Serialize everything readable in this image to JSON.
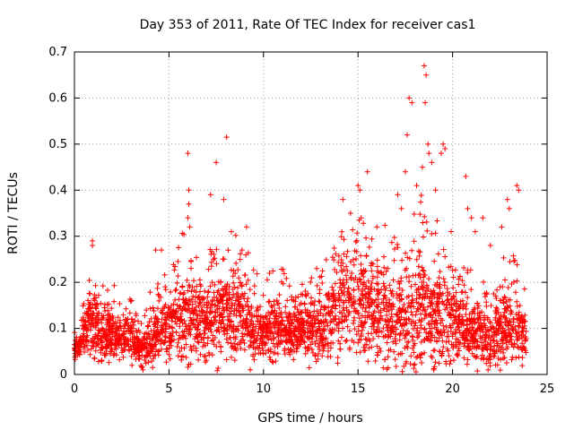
{
  "chart_data": {
    "type": "scatter",
    "title": "Day 353 of 2011, Rate Of TEC Index for receiver cas1",
    "xlabel": "GPS time / hours",
    "ylabel": "ROTI / TECUs",
    "xlim": [
      0,
      25
    ],
    "ylim": [
      0,
      0.7
    ],
    "xticks": [
      0,
      5,
      10,
      15,
      20,
      25
    ],
    "yticks": [
      0,
      0.1,
      0.2,
      0.3,
      0.4,
      0.5,
      0.6,
      0.7
    ],
    "grid": true,
    "marker": "+",
    "marker_color": "#ff0000",
    "envelope": {
      "x": [
        0,
        0.3,
        0.8,
        1.0,
        1.5,
        2.0,
        2.5,
        3.0,
        3.5,
        4.0,
        4.5,
        5.0,
        5.5,
        6.0,
        6.5,
        7.0,
        7.5,
        8.0,
        8.5,
        9.0,
        9.5,
        10.0,
        10.5,
        11.0,
        11.5,
        12.0,
        12.5,
        13.0,
        13.5,
        14.0,
        14.5,
        15.0,
        15.5,
        16.0,
        16.5,
        17.0,
        17.5,
        18.0,
        18.5,
        19.0,
        19.5,
        20.0,
        20.5,
        21.0,
        21.5,
        22.0,
        22.5,
        23.0,
        23.5,
        23.9
      ],
      "center": [
        0.05,
        0.06,
        0.12,
        0.1,
        0.09,
        0.09,
        0.08,
        0.08,
        0.05,
        0.07,
        0.1,
        0.11,
        0.12,
        0.13,
        0.12,
        0.11,
        0.12,
        0.14,
        0.13,
        0.12,
        0.1,
        0.09,
        0.1,
        0.1,
        0.09,
        0.11,
        0.1,
        0.1,
        0.12,
        0.15,
        0.16,
        0.15,
        0.13,
        0.14,
        0.13,
        0.11,
        0.12,
        0.13,
        0.14,
        0.12,
        0.13,
        0.12,
        0.11,
        0.09,
        0.09,
        0.08,
        0.1,
        0.11,
        0.1,
        0.09
      ],
      "spread": [
        0.02,
        0.02,
        0.06,
        0.06,
        0.05,
        0.05,
        0.04,
        0.04,
        0.03,
        0.05,
        0.06,
        0.06,
        0.08,
        0.09,
        0.08,
        0.07,
        0.08,
        0.09,
        0.08,
        0.08,
        0.06,
        0.05,
        0.06,
        0.06,
        0.05,
        0.06,
        0.06,
        0.06,
        0.07,
        0.1,
        0.11,
        0.11,
        0.09,
        0.1,
        0.09,
        0.09,
        0.1,
        0.11,
        0.12,
        0.1,
        0.1,
        0.09,
        0.08,
        0.06,
        0.06,
        0.06,
        0.07,
        0.08,
        0.07,
        0.05
      ]
    },
    "outliers": [
      [
        0.95,
        0.29
      ],
      [
        0.95,
        0.28
      ],
      [
        4.3,
        0.27
      ],
      [
        4.6,
        0.27
      ],
      [
        6.0,
        0.48
      ],
      [
        6.05,
        0.4
      ],
      [
        6.05,
        0.37
      ],
      [
        6.0,
        0.34
      ],
      [
        6.1,
        0.32
      ],
      [
        7.2,
        0.39
      ],
      [
        7.5,
        0.46
      ],
      [
        7.9,
        0.38
      ],
      [
        8.05,
        0.515
      ],
      [
        8.3,
        0.31
      ],
      [
        9.1,
        0.32
      ],
      [
        14.2,
        0.38
      ],
      [
        14.6,
        0.35
      ],
      [
        15.0,
        0.41
      ],
      [
        15.1,
        0.4
      ],
      [
        15.5,
        0.44
      ],
      [
        16.0,
        0.32
      ],
      [
        17.1,
        0.39
      ],
      [
        17.3,
        0.36
      ],
      [
        17.5,
        0.44
      ],
      [
        17.6,
        0.52
      ],
      [
        17.7,
        0.6
      ],
      [
        17.85,
        0.59
      ],
      [
        18.1,
        0.41
      ],
      [
        18.4,
        0.45
      ],
      [
        18.5,
        0.67
      ],
      [
        18.6,
        0.65
      ],
      [
        18.55,
        0.59
      ],
      [
        18.7,
        0.5
      ],
      [
        18.75,
        0.48
      ],
      [
        18.9,
        0.46
      ],
      [
        19.1,
        0.4
      ],
      [
        19.4,
        0.48
      ],
      [
        19.5,
        0.5
      ],
      [
        19.6,
        0.49
      ],
      [
        20.7,
        0.43
      ],
      [
        20.8,
        0.36
      ],
      [
        21.0,
        0.34
      ],
      [
        21.2,
        0.31
      ],
      [
        21.6,
        0.34
      ],
      [
        22.0,
        0.28
      ],
      [
        22.6,
        0.32
      ],
      [
        22.9,
        0.38
      ],
      [
        23.0,
        0.36
      ],
      [
        23.4,
        0.41
      ],
      [
        23.5,
        0.4
      ]
    ]
  }
}
